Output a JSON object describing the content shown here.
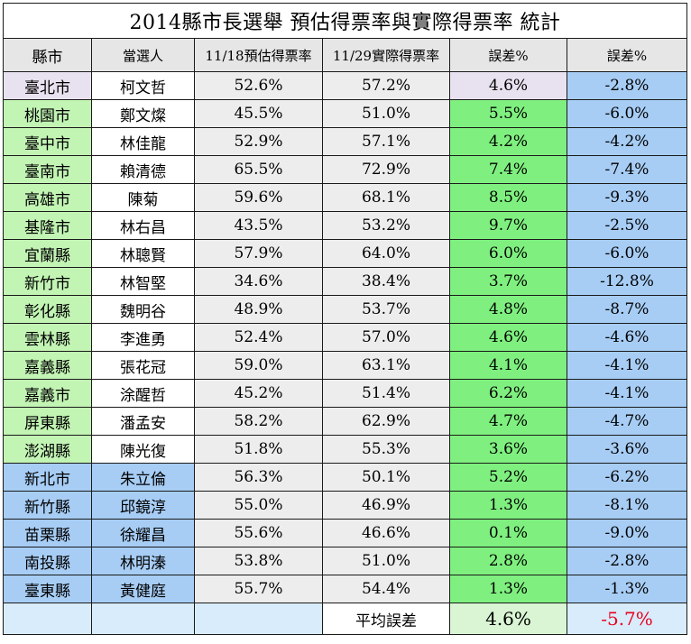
{
  "title": "2014縣市長選舉  預估得票率與實際得票率 統計",
  "headers": [
    "縣市",
    "當選人",
    "11/18預估得票率",
    "11/29實際得票率",
    "誤差%",
    "誤差%"
  ],
  "rows": [
    {
      "city": "臺北市",
      "name": "柯文哲",
      "pred": "52.6%",
      "act": "57.2%",
      "err": "4.6%",
      "err2": "-2.8%"
    },
    {
      "city": "桃園市",
      "name": "鄭文燦",
      "pred": "45.5%",
      "act": "51.0%",
      "err": "5.5%",
      "err2": "-6.0%"
    },
    {
      "city": "臺中市",
      "name": "林佳龍",
      "pred": "52.9%",
      "act": "57.1%",
      "err": "4.2%",
      "err2": "-4.2%"
    },
    {
      "city": "臺南市",
      "name": "賴清德",
      "pred": "65.5%",
      "act": "72.9%",
      "err": "7.4%",
      "err2": "-7.4%"
    },
    {
      "city": "高雄市",
      "name": "陳菊",
      "pred": "59.6%",
      "act": "68.1%",
      "err": "8.5%",
      "err2": "-9.3%"
    },
    {
      "city": "基隆市",
      "name": "林右昌",
      "pred": "43.5%",
      "act": "53.2%",
      "err": "9.7%",
      "err2": "-2.5%"
    },
    {
      "city": "宜蘭縣",
      "name": "林聰賢",
      "pred": "57.9%",
      "act": "64.0%",
      "err": "6.0%",
      "err2": "-6.0%"
    },
    {
      "city": "新竹市",
      "name": "林智堅",
      "pred": "34.6%",
      "act": "38.4%",
      "err": "3.7%",
      "err2": "-12.8%"
    },
    {
      "city": "彰化縣",
      "name": "魏明谷",
      "pred": "48.9%",
      "act": "53.7%",
      "err": "4.8%",
      "err2": "-8.7%"
    },
    {
      "city": "雲林縣",
      "name": "李進勇",
      "pred": "52.4%",
      "act": "57.0%",
      "err": "4.6%",
      "err2": "-4.6%"
    },
    {
      "city": "嘉義縣",
      "name": "張花冠",
      "pred": "59.0%",
      "act": "63.1%",
      "err": "4.1%",
      "err2": "-4.1%"
    },
    {
      "city": "嘉義市",
      "name": "涂醒哲",
      "pred": "45.2%",
      "act": "51.4%",
      "err": "6.2%",
      "err2": "-4.1%"
    },
    {
      "city": "屏東縣",
      "name": "潘孟安",
      "pred": "58.2%",
      "act": "62.9%",
      "err": "4.7%",
      "err2": "-4.7%"
    },
    {
      "city": "澎湖縣",
      "name": "陳光復",
      "pred": "51.8%",
      "act": "55.3%",
      "err": "3.6%",
      "err2": "-3.6%"
    },
    {
      "city": "新北市",
      "name": "朱立倫",
      "pred": "56.3%",
      "act": "50.1%",
      "err": "5.2%",
      "err2": "-6.2%"
    },
    {
      "city": "新竹縣",
      "name": "邱鏡淳",
      "pred": "55.0%",
      "act": "46.9%",
      "err": "1.3%",
      "err2": "-8.1%"
    },
    {
      "city": "苗栗縣",
      "name": "徐耀昌",
      "pred": "55.6%",
      "act": "46.6%",
      "err": "0.1%",
      "err2": "-9.0%"
    },
    {
      "city": "南投縣",
      "name": "林明溱",
      "pred": "53.8%",
      "act": "51.0%",
      "err": "2.8%",
      "err2": "-2.8%"
    },
    {
      "city": "臺東縣",
      "name": "黃健庭",
      "pred": "55.7%",
      "act": "54.4%",
      "err": "1.3%",
      "err2": "-1.3%"
    }
  ],
  "footer": {
    "label": "平均誤差",
    "avg1": "4.6%",
    "avg2": "-5.7%"
  },
  "colors": {
    "green_city": "#c2f4b4",
    "green_err": "#7ff07f",
    "blue": "#a7cdf5",
    "avg_negative": "#e8001c"
  }
}
